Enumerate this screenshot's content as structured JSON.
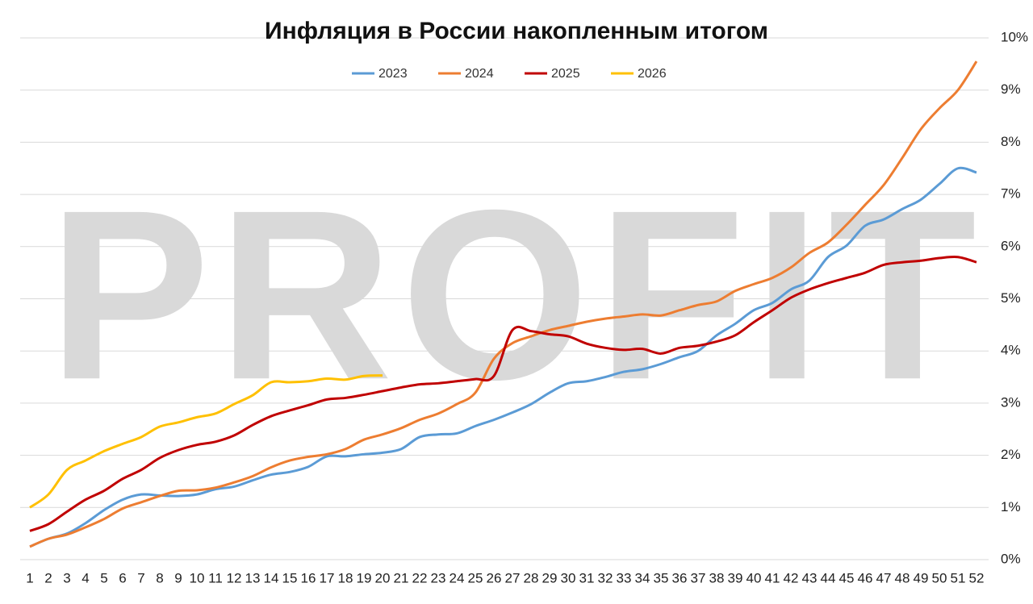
{
  "chart_data": {
    "type": "line",
    "title": "Инфляция в России накопленным итогом",
    "watermark": "PROFIT",
    "categories": [
      1,
      2,
      3,
      4,
      5,
      6,
      7,
      8,
      9,
      10,
      11,
      12,
      13,
      14,
      15,
      16,
      17,
      18,
      19,
      20,
      21,
      22,
      23,
      24,
      25,
      26,
      27,
      28,
      29,
      30,
      31,
      32,
      33,
      34,
      35,
      36,
      37,
      38,
      39,
      40,
      41,
      42,
      43,
      44,
      45,
      46,
      47,
      48,
      49,
      50,
      51,
      52
    ],
    "ylim": [
      0,
      10
    ],
    "yticks": [
      {
        "value": 0,
        "label": "0%"
      },
      {
        "value": 1,
        "label": "1%"
      },
      {
        "value": 2,
        "label": "2%"
      },
      {
        "value": 3,
        "label": "3%"
      },
      {
        "value": 4,
        "label": "4%"
      },
      {
        "value": 5,
        "label": "5%"
      },
      {
        "value": 6,
        "label": "6%"
      },
      {
        "value": 7,
        "label": "7%"
      },
      {
        "value": 8,
        "label": "8%"
      },
      {
        "value": 9,
        "label": "9%"
      },
      {
        "value": 10,
        "label": "10%"
      }
    ],
    "grid": true,
    "legend": "top",
    "series": [
      {
        "name": "2023",
        "color": "#5b9bd5",
        "values": [
          0.25,
          0.4,
          0.5,
          0.7,
          0.95,
          1.15,
          1.25,
          1.23,
          1.22,
          1.25,
          1.35,
          1.4,
          1.52,
          1.63,
          1.68,
          1.78,
          1.98,
          1.98,
          2.02,
          2.05,
          2.12,
          2.35,
          2.4,
          2.42,
          2.56,
          2.68,
          2.82,
          2.98,
          3.2,
          3.38,
          3.42,
          3.5,
          3.6,
          3.65,
          3.75,
          3.88,
          4.0,
          4.3,
          4.52,
          4.78,
          4.92,
          5.18,
          5.35,
          5.8,
          6.02,
          6.4,
          6.52,
          6.72,
          6.9,
          7.2,
          7.5,
          7.42
        ]
      },
      {
        "name": "2024",
        "color": "#ed7d31",
        "values": [
          0.25,
          0.4,
          0.48,
          0.62,
          0.78,
          0.98,
          1.1,
          1.22,
          1.32,
          1.33,
          1.38,
          1.48,
          1.6,
          1.77,
          1.9,
          1.97,
          2.02,
          2.12,
          2.3,
          2.4,
          2.52,
          2.68,
          2.8,
          2.98,
          3.2,
          3.85,
          4.15,
          4.28,
          4.4,
          4.48,
          4.56,
          4.62,
          4.66,
          4.7,
          4.68,
          4.78,
          4.88,
          4.95,
          5.15,
          5.28,
          5.4,
          5.6,
          5.88,
          6.08,
          6.42,
          6.8,
          7.18,
          7.7,
          8.25,
          8.65,
          9.0,
          9.55
        ]
      },
      {
        "name": "2025",
        "color": "#c00000",
        "values": [
          0.55,
          0.68,
          0.92,
          1.15,
          1.32,
          1.55,
          1.72,
          1.95,
          2.1,
          2.2,
          2.26,
          2.38,
          2.58,
          2.75,
          2.86,
          2.96,
          3.07,
          3.1,
          3.16,
          3.23,
          3.3,
          3.36,
          3.38,
          3.42,
          3.46,
          3.52,
          4.4,
          4.38,
          4.32,
          4.28,
          4.14,
          4.06,
          4.02,
          4.04,
          3.95,
          4.06,
          4.1,
          4.18,
          4.3,
          4.55,
          4.78,
          5.02,
          5.18,
          5.3,
          5.4,
          5.5,
          5.65,
          5.7,
          5.73,
          5.78,
          5.8,
          5.7
        ]
      },
      {
        "name": "2026",
        "color": "#ffc000",
        "values": [
          1.0,
          1.25,
          1.72,
          1.9,
          2.08,
          2.22,
          2.35,
          2.55,
          2.63,
          2.73,
          2.8,
          2.98,
          3.15,
          3.4,
          3.4,
          3.42,
          3.47,
          3.45,
          3.52,
          3.53,
          null,
          null,
          null,
          null,
          null,
          null,
          null,
          null,
          null,
          null,
          null,
          null,
          null,
          null,
          null,
          null,
          null,
          null,
          null,
          null,
          null,
          null,
          null,
          null,
          null,
          null,
          null,
          null,
          null,
          null,
          null,
          null
        ]
      }
    ]
  }
}
